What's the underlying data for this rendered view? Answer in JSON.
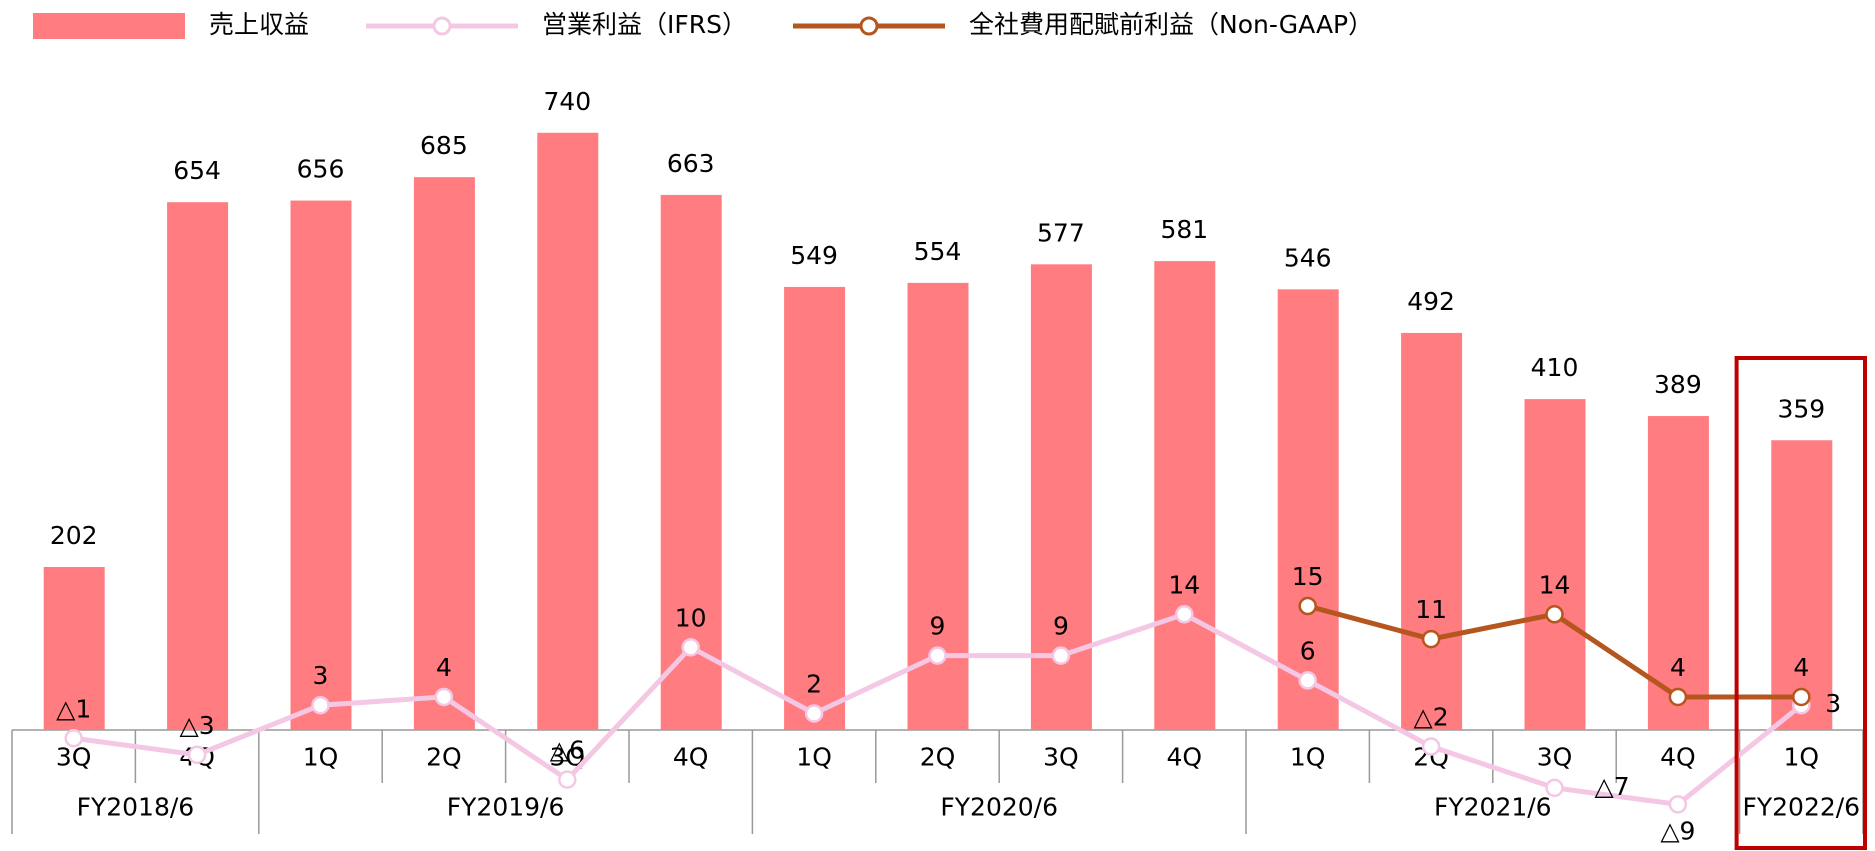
{
  "chart_data": {
    "type": "bar",
    "groups": [
      {
        "label": "FY2018/6",
        "categories": [
          "3Q",
          "4Q"
        ]
      },
      {
        "label": "FY2019/6",
        "categories": [
          "1Q",
          "2Q",
          "3Q",
          "4Q"
        ]
      },
      {
        "label": "FY2020/6",
        "categories": [
          "1Q",
          "2Q",
          "3Q",
          "4Q"
        ]
      },
      {
        "label": "FY2021/6",
        "categories": [
          "1Q",
          "2Q",
          "3Q",
          "4Q"
        ]
      },
      {
        "label": "FY2022/6",
        "categories": [
          "1Q"
        ]
      }
    ],
    "series": [
      {
        "name": "売上収益",
        "type": "bar",
        "color": "#ff7c80",
        "axis": "y",
        "values": [
          202,
          654,
          656,
          685,
          740,
          663,
          549,
          554,
          577,
          581,
          546,
          492,
          410,
          389,
          359
        ]
      },
      {
        "name": "営業利益（IFRS）",
        "type": "line",
        "color": "#f4c7e4",
        "axis": "y2",
        "values": [
          -1,
          -3,
          3,
          4,
          -6,
          10,
          2,
          9,
          9,
          14,
          6,
          -2,
          -7,
          -9,
          3
        ],
        "value_labels": [
          "△1",
          "△3",
          "3",
          "4",
          "△6",
          "10",
          "2",
          "9",
          "9",
          "14",
          "6",
          "△2",
          "△7",
          "△9",
          "3"
        ]
      },
      {
        "name": "全社費用配賦前利益（Non-GAAP）",
        "type": "line",
        "color": "#b5561e",
        "axis": "y2",
        "values": [
          null,
          null,
          null,
          null,
          null,
          null,
          null,
          null,
          null,
          null,
          15,
          11,
          14,
          4,
          4
        ]
      }
    ],
    "ylim": [
      0,
      850
    ],
    "y2lim": [
      0,
      83
    ],
    "grid": false,
    "legend": "top"
  }
}
